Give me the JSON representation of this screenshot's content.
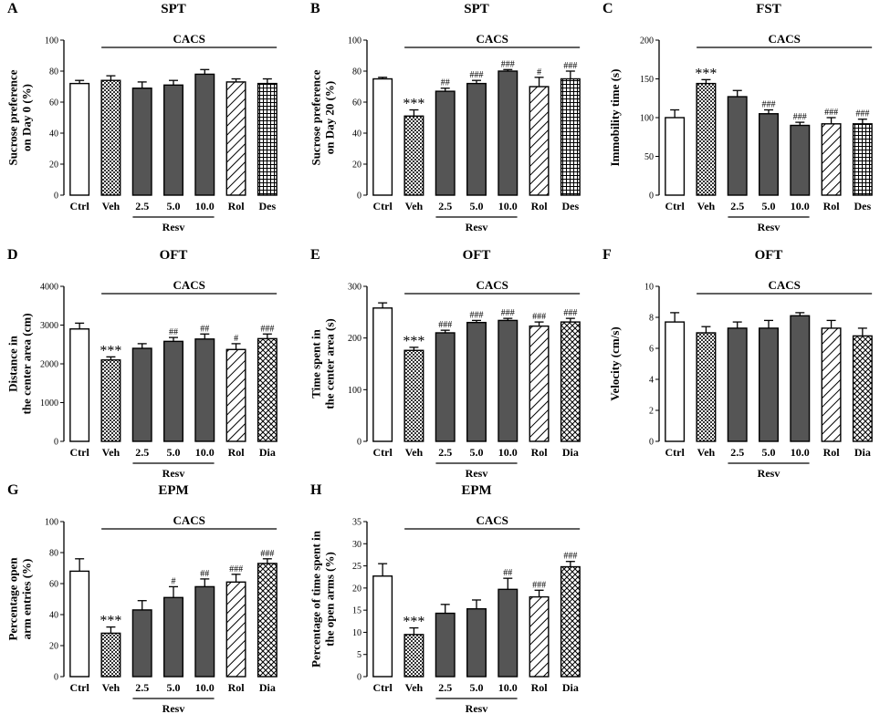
{
  "colors": {
    "control": "#ffffff",
    "treatment": "#555555",
    "ink": "#000000"
  },
  "chart_data": [
    {
      "id": "A",
      "type": "bar",
      "title": "SPT",
      "group_label": "CACS",
      "sub_group_label": "Resv",
      "ylabel": [
        "Sucrose preference",
        "on Day 0 (%)"
      ],
      "ylim": [
        0,
        100
      ],
      "yticks": [
        0,
        20,
        40,
        60,
        80,
        100
      ],
      "categories": [
        "Ctrl",
        "Veh",
        "2.5",
        "5.0",
        "10.0",
        "Rol",
        "Des"
      ],
      "values": [
        72,
        74,
        69,
        71,
        78,
        73,
        72
      ],
      "errors": [
        2,
        3,
        4,
        3,
        3,
        2,
        3
      ],
      "patterns": [
        "white",
        "check",
        "solid",
        "solid",
        "solid",
        "diag",
        "grid"
      ],
      "annotations": [
        "",
        "",
        "",
        "",
        "",
        "",
        ""
      ]
    },
    {
      "id": "B",
      "type": "bar",
      "title": "SPT",
      "group_label": "CACS",
      "sub_group_label": "Resv",
      "ylabel": [
        "Sucrose preference",
        "on Day 20 (%)"
      ],
      "ylim": [
        0,
        100
      ],
      "yticks": [
        0,
        20,
        40,
        60,
        80,
        100
      ],
      "categories": [
        "Ctrl",
        "Veh",
        "2.5",
        "5.0",
        "10.0",
        "Rol",
        "Des"
      ],
      "values": [
        75,
        51,
        67,
        72,
        80,
        70,
        75
      ],
      "errors": [
        1,
        4,
        2,
        2,
        1,
        6,
        5
      ],
      "patterns": [
        "white",
        "check",
        "solid",
        "solid",
        "solid",
        "diag",
        "grid"
      ],
      "annotations": [
        "",
        "***",
        "##",
        "###",
        "###",
        "#",
        "###"
      ]
    },
    {
      "id": "C",
      "type": "bar",
      "title": "FST",
      "group_label": "CACS",
      "sub_group_label": "Resv",
      "ylabel": [
        "Immobility time (s)"
      ],
      "ylim": [
        0,
        200
      ],
      "yticks": [
        0,
        50,
        100,
        150,
        200
      ],
      "categories": [
        "Ctrl",
        "Veh",
        "2.5",
        "5.0",
        "10.0",
        "Rol",
        "Des"
      ],
      "values": [
        100,
        144,
        127,
        105,
        90,
        92,
        92
      ],
      "errors": [
        10,
        5,
        8,
        5,
        4,
        8,
        6
      ],
      "patterns": [
        "white",
        "check",
        "solid",
        "solid",
        "solid",
        "diag",
        "grid"
      ],
      "annotations": [
        "",
        "***",
        "",
        "###",
        "###",
        "###",
        "###"
      ]
    },
    {
      "id": "D",
      "type": "bar",
      "title": "OFT",
      "group_label": "CACS",
      "sub_group_label": "Resv",
      "ylabel": [
        "Distance in",
        "the center area (cm)"
      ],
      "ylim": [
        0,
        4000
      ],
      "yticks": [
        0,
        1000,
        2000,
        3000,
        4000
      ],
      "categories": [
        "Ctrl",
        "Veh",
        "2.5",
        "5.0",
        "10.0",
        "Rol",
        "Dia"
      ],
      "values": [
        2900,
        2100,
        2400,
        2580,
        2640,
        2370,
        2650
      ],
      "errors": [
        150,
        80,
        120,
        100,
        130,
        150,
        120
      ],
      "patterns": [
        "white",
        "check",
        "solid",
        "solid",
        "solid",
        "diag",
        "cross"
      ],
      "annotations": [
        "",
        "***",
        "",
        "##",
        "##",
        "#",
        "###"
      ]
    },
    {
      "id": "E",
      "type": "bar",
      "title": "OFT",
      "group_label": "CACS",
      "sub_group_label": "Resv",
      "ylabel": [
        "Time spent in",
        "the center area (s)"
      ],
      "ylim": [
        0,
        300
      ],
      "yticks": [
        0,
        100,
        200,
        300
      ],
      "categories": [
        "Ctrl",
        "Veh",
        "2.5",
        "5.0",
        "10.0",
        "Rol",
        "Dia"
      ],
      "values": [
        258,
        176,
        210,
        230,
        234,
        223,
        231
      ],
      "errors": [
        10,
        6,
        5,
        4,
        4,
        8,
        7
      ],
      "patterns": [
        "white",
        "check",
        "solid",
        "solid",
        "solid",
        "diag",
        "cross"
      ],
      "annotations": [
        "",
        "***",
        "###",
        "###",
        "###",
        "###",
        "###"
      ]
    },
    {
      "id": "F",
      "type": "bar",
      "title": "OFT",
      "group_label": "CACS",
      "sub_group_label": "Resv",
      "ylabel": [
        "Velocity (cm/s)"
      ],
      "ylim": [
        0,
        10
      ],
      "yticks": [
        0,
        2,
        4,
        6,
        8,
        10
      ],
      "categories": [
        "Ctrl",
        "Veh",
        "2.5",
        "5.0",
        "10.0",
        "Rol",
        "Dia"
      ],
      "values": [
        7.7,
        7.0,
        7.3,
        7.3,
        8.1,
        7.3,
        6.8
      ],
      "errors": [
        0.6,
        0.4,
        0.4,
        0.5,
        0.2,
        0.5,
        0.5
      ],
      "patterns": [
        "white",
        "check",
        "solid",
        "solid",
        "solid",
        "diag",
        "cross"
      ],
      "annotations": [
        "",
        "",
        "",
        "",
        "",
        "",
        ""
      ]
    },
    {
      "id": "G",
      "type": "bar",
      "title": "EPM",
      "group_label": "CACS",
      "sub_group_label": "Resv",
      "ylabel": [
        "Percentage open",
        "arm entries (%)"
      ],
      "ylim": [
        0,
        100
      ],
      "yticks": [
        0,
        20,
        40,
        60,
        80,
        100
      ],
      "categories": [
        "Ctrl",
        "Veh",
        "2.5",
        "5.0",
        "10.0",
        "Rol",
        "Dia"
      ],
      "values": [
        68,
        28,
        43,
        51,
        58,
        61,
        73
      ],
      "errors": [
        8,
        4,
        6,
        7,
        5,
        5,
        3
      ],
      "patterns": [
        "white",
        "check",
        "solid",
        "solid",
        "solid",
        "diag",
        "cross"
      ],
      "annotations": [
        "",
        "***",
        "",
        "#",
        "##",
        "###",
        "###"
      ]
    },
    {
      "id": "H",
      "type": "bar",
      "title": "EPM",
      "group_label": "CACS",
      "sub_group_label": "Resv",
      "ylabel": [
        "Percentage of time spent in",
        "the open arms (%)"
      ],
      "ylim": [
        0,
        35
      ],
      "yticks": [
        0,
        5,
        10,
        15,
        20,
        25,
        30,
        35
      ],
      "categories": [
        "Ctrl",
        "Veh",
        "2.5",
        "5.0",
        "10.0",
        "Rol",
        "Dia"
      ],
      "values": [
        22.7,
        9.5,
        14.3,
        15.3,
        19.7,
        18.0,
        24.8
      ],
      "errors": [
        2.8,
        1.5,
        2.0,
        2.0,
        2.5,
        1.5,
        1.2
      ],
      "patterns": [
        "white",
        "check",
        "solid",
        "solid",
        "solid",
        "diag",
        "cross"
      ],
      "annotations": [
        "",
        "***",
        "",
        "",
        "##",
        "###",
        "###"
      ]
    }
  ]
}
